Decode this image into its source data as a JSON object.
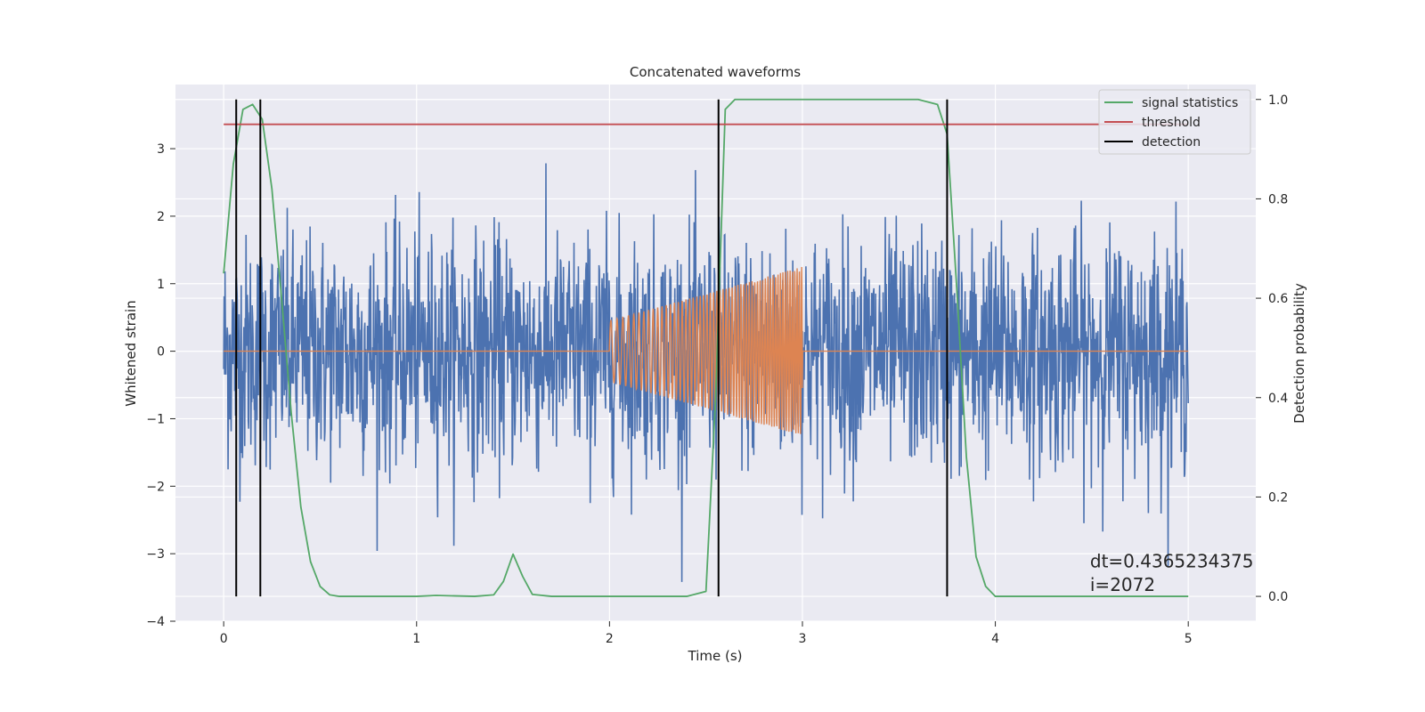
{
  "chart_data": {
    "type": "line",
    "title": "Concatenated waveforms",
    "xlabel": "Time (s)",
    "ylabel": "Whitened strain",
    "ylabel_right": "Detection probability",
    "xlim": [
      -0.25,
      5.35
    ],
    "ylim": [
      -4,
      3.95
    ],
    "ylim_right": [
      -0.05,
      1.03
    ],
    "x_ticks": [
      0,
      1,
      2,
      3,
      4,
      5
    ],
    "y_ticks": [
      3,
      2,
      1,
      0,
      -1,
      -2,
      -3,
      -4
    ],
    "y_tick_labels": [
      "3",
      "2",
      "1",
      "0",
      "−1",
      "−2",
      "−3",
      "−4"
    ],
    "y_right_ticks": [
      1.0,
      0.8,
      0.6,
      0.4,
      0.2,
      0.0
    ],
    "y_right_tick_labels": [
      "1.0",
      "0.8",
      "0.6",
      "0.4",
      "0.2",
      "0.0"
    ],
    "grid": true,
    "legend_position": "top-right",
    "background": "#eaeaf2",
    "series": [
      {
        "name": "",
        "kind": "noise",
        "axis": "left",
        "color": "#4c72b0",
        "x_range": [
          0,
          5
        ],
        "amplitude_std": 0.85
      },
      {
        "name": "",
        "kind": "chirp",
        "axis": "left",
        "color": "#dd8452",
        "x_range": [
          0,
          5
        ],
        "chirp_start": 2.0,
        "chirp_end": 3.0,
        "amplitude_start": 0.45,
        "amplitude_end": 1.25,
        "freq_start": 30,
        "freq_end": 85
      },
      {
        "name": "signal statistics",
        "axis": "right",
        "color": "#55a868",
        "x": [
          0,
          0.05,
          0.1,
          0.15,
          0.2,
          0.25,
          0.3,
          0.35,
          0.4,
          0.45,
          0.5,
          0.55,
          0.6,
          1.0,
          1.1,
          1.3,
          1.4,
          1.45,
          1.5,
          1.55,
          1.6,
          1.7,
          2.0,
          2.4,
          2.5,
          2.55,
          2.6,
          2.65,
          3.6,
          3.7,
          3.75,
          3.8,
          3.85,
          3.9,
          3.95,
          4.0,
          5.0
        ],
        "y": [
          0.65,
          0.87,
          0.98,
          0.99,
          0.96,
          0.82,
          0.6,
          0.37,
          0.18,
          0.07,
          0.02,
          0.003,
          0.0,
          0.0,
          0.002,
          0.0,
          0.003,
          0.03,
          0.085,
          0.04,
          0.004,
          0.0,
          0.0,
          0.0,
          0.01,
          0.4,
          0.98,
          1.0,
          1.0,
          0.99,
          0.93,
          0.62,
          0.28,
          0.08,
          0.02,
          0.0,
          0.0
        ]
      },
      {
        "name": "threshold",
        "axis": "right",
        "color": "#c44e52",
        "x": [
          0,
          5
        ],
        "y": [
          0.95,
          0.95
        ]
      },
      {
        "name": "detection",
        "axis": "right",
        "color": "#000000",
        "vlines": [
          0.065,
          0.19,
          2.565,
          3.75
        ],
        "y_range": [
          0.0,
          1.0
        ]
      }
    ],
    "annotations": [
      {
        "text": "dt=0.4365234375",
        "x": 4.5,
        "y": -3.2
      },
      {
        "text": " i=2072",
        "x": 4.5,
        "y": -3.55
      }
    ]
  }
}
